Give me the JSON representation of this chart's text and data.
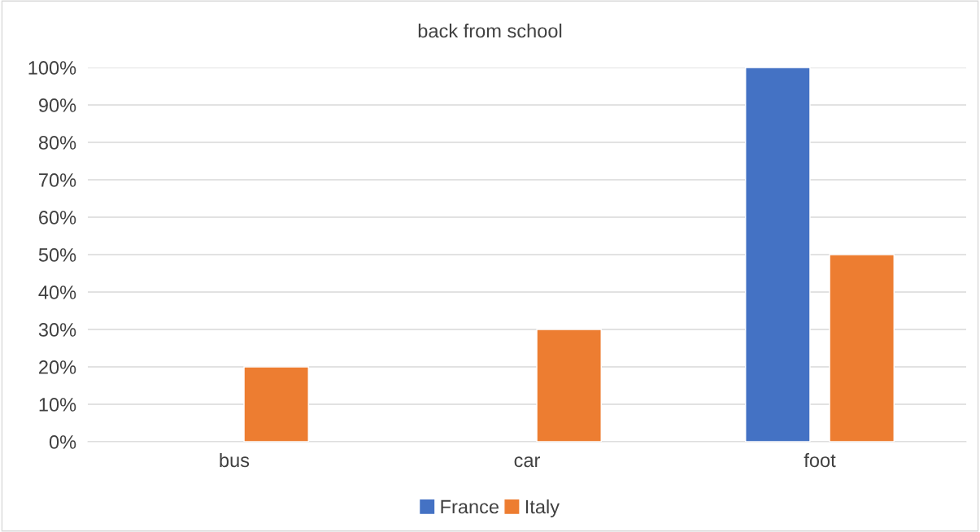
{
  "chart_data": {
    "type": "bar",
    "title": "back from school",
    "categories": [
      "bus",
      "car",
      "foot"
    ],
    "series": [
      {
        "name": "France",
        "color": "#4472c4",
        "values": [
          null,
          null,
          100
        ]
      },
      {
        "name": "Italy",
        "color": "#ed7d31",
        "values": [
          20,
          30,
          50
        ]
      }
    ],
    "ylim": [
      0,
      100
    ],
    "yticks": [
      {
        "value": 0,
        "label": "0%"
      },
      {
        "value": 10,
        "label": "10%"
      },
      {
        "value": 20,
        "label": "20%"
      },
      {
        "value": 30,
        "label": "30%"
      },
      {
        "value": 40,
        "label": "40%"
      },
      {
        "value": 50,
        "label": "50%"
      },
      {
        "value": 60,
        "label": "60%"
      },
      {
        "value": 70,
        "label": "70%"
      },
      {
        "value": 80,
        "label": "80%"
      },
      {
        "value": 90,
        "label": "90%"
      },
      {
        "value": 100,
        "label": "100%"
      }
    ],
    "grid": "y",
    "legend": "bottom"
  }
}
